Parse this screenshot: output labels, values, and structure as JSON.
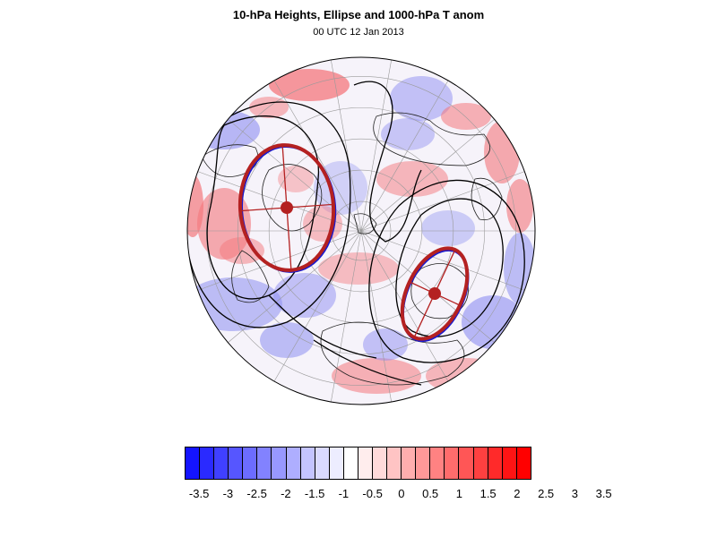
{
  "title": "10-hPa Heights, Ellipse and 1000-hPa T anom",
  "subtitle": "00 UTC 12 Jan 2013",
  "map": {
    "projection": "north-polar stereographic",
    "field_colors": {
      "warm": "#f4777c",
      "cool": "#8d8ef1",
      "neutral": "#f7f4fb"
    },
    "contour_color": "#000000",
    "ellipse_color": "#b42121",
    "ellipse_outline_color": "#1a1acc",
    "grid_color": "#9a9a9a"
  },
  "colorbar": {
    "colors": [
      "#1414ff",
      "#2a2aff",
      "#4040ff",
      "#5656ff",
      "#6c6cff",
      "#8282ff",
      "#9898ff",
      "#aeaeff",
      "#c4c4ff",
      "#dadaff",
      "#ededff",
      "#ffffff",
      "#ffeded",
      "#ffdada",
      "#ffc4c4",
      "#ffaeae",
      "#ff9898",
      "#ff8282",
      "#ff6c6c",
      "#ff5656",
      "#ff4040",
      "#ff2a2a",
      "#ff1414",
      "#ff0000"
    ],
    "tick_labels": [
      "-3.5",
      "-3",
      "-2.5",
      "-2",
      "-1.5",
      "-1",
      "-0.5",
      "0",
      "0.5",
      "1",
      "1.5",
      "2",
      "2.5",
      "3",
      "3.5"
    ]
  }
}
